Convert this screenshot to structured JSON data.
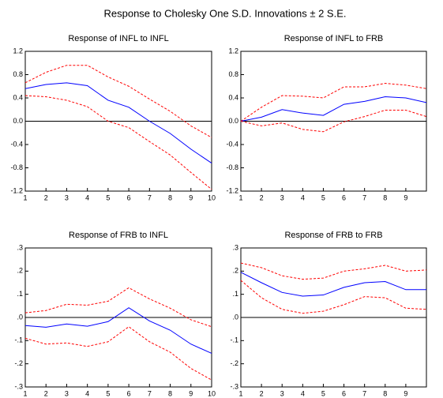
{
  "title": "Response to Cholesky One S.D. Innovations ± 2 S.E.",
  "chart_data": [
    {
      "type": "line",
      "title": "Response of INFL to INFL",
      "x": [
        1,
        2,
        3,
        4,
        5,
        6,
        7,
        8,
        9,
        10
      ],
      "xlim": [
        1,
        10
      ],
      "xticks": [
        1,
        2,
        3,
        4,
        5,
        6,
        7,
        8,
        9,
        10
      ],
      "ylim": [
        -1.2,
        1.2
      ],
      "yticks": [
        1.2,
        0.8,
        0.4,
        {
          "value": 0,
          "label": "0.0"
        },
        -0.4,
        -0.8,
        -1.2
      ],
      "series": [
        {
          "color": "#ff0000",
          "dashed": true,
          "values": [
            0.66,
            0.84,
            0.96,
            0.96,
            0.76,
            0.6,
            0.38,
            0.17,
            -0.08,
            -0.28
          ]
        },
        {
          "color": "#0000ff",
          "dashed": false,
          "values": [
            0.56,
            0.63,
            0.66,
            0.61,
            0.36,
            0.24,
            0.0,
            -0.21,
            -0.48,
            -0.72
          ]
        },
        {
          "color": "#ff0000",
          "dashed": true,
          "values": [
            0.44,
            0.42,
            0.36,
            0.25,
            0.0,
            -0.11,
            -0.35,
            -0.58,
            -0.88,
            -1.17
          ]
        }
      ]
    },
    {
      "type": "line",
      "title": "Response of INFL to FRB",
      "x": [
        1,
        2,
        3,
        4,
        5,
        6,
        7,
        8,
        9,
        10
      ],
      "xlim": [
        1,
        10
      ],
      "xticks": [
        1,
        2,
        3,
        4,
        5,
        6,
        7,
        8,
        9
      ],
      "ylim": [
        -1.2,
        1.2
      ],
      "yticks": [
        1.2,
        0.8,
        0.4,
        {
          "value": 0,
          "label": "0.0"
        },
        -0.4,
        -0.8,
        -1.2
      ],
      "series": [
        {
          "color": "#ff0000",
          "dashed": true,
          "values": [
            0.0,
            0.24,
            0.44,
            0.43,
            0.4,
            0.59,
            0.59,
            0.65,
            0.62,
            0.56
          ]
        },
        {
          "color": "#0000ff",
          "dashed": false,
          "values": [
            0.0,
            0.07,
            0.2,
            0.14,
            0.1,
            0.29,
            0.34,
            0.42,
            0.4,
            0.32
          ]
        },
        {
          "color": "#ff0000",
          "dashed": true,
          "values": [
            0.0,
            -0.08,
            -0.03,
            -0.14,
            -0.18,
            -0.01,
            0.08,
            0.19,
            0.19,
            0.08
          ]
        }
      ]
    },
    {
      "type": "line",
      "title": "Response of FRB to INFL",
      "x": [
        1,
        2,
        3,
        4,
        5,
        6,
        7,
        8,
        9,
        10
      ],
      "xlim": [
        1,
        10
      ],
      "xticks": [
        1,
        2,
        3,
        4,
        5,
        6,
        7,
        8,
        9,
        10
      ],
      "ylim": [
        -0.3,
        0.3
      ],
      "yticks": [
        {
          "value": 0.3,
          "label": ".3"
        },
        {
          "value": 0.2,
          "label": ".2"
        },
        {
          "value": 0.1,
          "label": ".1"
        },
        {
          "value": 0,
          "label": ".0"
        },
        {
          "value": -0.1,
          "label": "-.1"
        },
        {
          "value": -0.2,
          "label": "-.2"
        },
        {
          "value": -0.3,
          "label": "-.3"
        }
      ],
      "series": [
        {
          "color": "#ff0000",
          "dashed": true,
          "values": [
            0.02,
            0.03,
            0.057,
            0.053,
            0.07,
            0.128,
            0.08,
            0.04,
            -0.01,
            -0.04
          ]
        },
        {
          "color": "#0000ff",
          "dashed": false,
          "values": [
            -0.035,
            -0.042,
            -0.028,
            -0.038,
            -0.018,
            0.042,
            -0.015,
            -0.055,
            -0.115,
            -0.155
          ]
        },
        {
          "color": "#ff0000",
          "dashed": true,
          "values": [
            -0.09,
            -0.115,
            -0.11,
            -0.125,
            -0.105,
            -0.04,
            -0.105,
            -0.15,
            -0.22,
            -0.27
          ]
        }
      ]
    },
    {
      "type": "line",
      "title": "Response of FRB to FRB",
      "x": [
        1,
        2,
        3,
        4,
        5,
        6,
        7,
        8,
        9,
        10
      ],
      "xlim": [
        1,
        10
      ],
      "xticks": [
        1,
        2,
        3,
        4,
        5,
        6,
        7,
        8,
        9
      ],
      "ylim": [
        -0.3,
        0.3
      ],
      "yticks": [
        {
          "value": 0.3,
          "label": ".3"
        },
        {
          "value": 0.2,
          "label": ".2"
        },
        {
          "value": 0.1,
          "label": ".1"
        },
        {
          "value": 0,
          "label": ".0"
        },
        {
          "value": -0.1,
          "label": "-.1"
        },
        {
          "value": -0.2,
          "label": "-.2"
        },
        {
          "value": -0.3,
          "label": "-.3"
        }
      ],
      "series": [
        {
          "color": "#ff0000",
          "dashed": true,
          "values": [
            0.235,
            0.215,
            0.18,
            0.165,
            0.17,
            0.2,
            0.21,
            0.225,
            0.2,
            0.205
          ]
        },
        {
          "color": "#0000ff",
          "dashed": false,
          "values": [
            0.195,
            0.15,
            0.108,
            0.092,
            0.097,
            0.13,
            0.15,
            0.155,
            0.12,
            0.12
          ]
        },
        {
          "color": "#ff0000",
          "dashed": true,
          "values": [
            0.16,
            0.085,
            0.035,
            0.018,
            0.027,
            0.055,
            0.09,
            0.085,
            0.04,
            0.035
          ]
        }
      ]
    }
  ]
}
